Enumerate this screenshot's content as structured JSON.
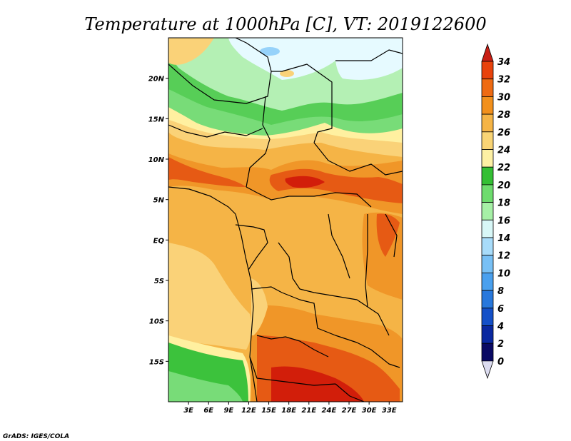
{
  "plot": {
    "title": "Temperature at 1000hPa [C], VT: 2019122600",
    "credit": "GrADS: IGES/COLA"
  },
  "map": {
    "region_lon_range": [
      0,
      35
    ],
    "region_lat_range": [
      -20,
      25
    ],
    "lon_labels": [
      "3E",
      "6E",
      "9E",
      "12E",
      "15E",
      "18E",
      "21E",
      "24E",
      "27E",
      "30E",
      "33E"
    ],
    "lat_labels": [
      "20N",
      "15N",
      "10N",
      "5N",
      "EQ",
      "5S",
      "10S",
      "15S"
    ],
    "colors": {
      "c14_16": "#e6faff",
      "c16_18": "#b4f0b4",
      "c18_20": "#78dc78",
      "c20_22": "#3cc23c",
      "c22_24": "#fff0a0",
      "c24_26": "#fad278",
      "c26_28": "#f5b446",
      "c28_30": "#f09628",
      "c30_32": "#e65a14",
      "c32_34": "#d21e0a",
      "c12_14": "#96d2fa"
    }
  },
  "colorbar": {
    "levels": [
      "34",
      "32",
      "30",
      "28",
      "26",
      "24",
      "22",
      "20",
      "18",
      "16",
      "14",
      "12",
      "10",
      "8",
      "6",
      "4",
      "2",
      "0"
    ],
    "colors": [
      "#d22018",
      "#e8420c",
      "#ee6a12",
      "#f2901c",
      "#f5b446",
      "#f9d475",
      "#fdf0a4",
      "#34bf34",
      "#6edc6e",
      "#a6f0a6",
      "#d8f7f7",
      "#a8dcfa",
      "#78c0f5",
      "#4aa0ee",
      "#2878dc",
      "#1450c8",
      "#0a28a0",
      "#0a0a64"
    ],
    "top_arrow_color": "#c81e14",
    "bottom_arrow_color": "#dcdcf0"
  }
}
